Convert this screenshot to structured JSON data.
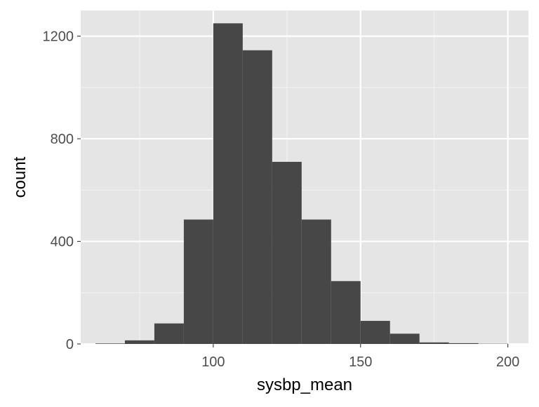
{
  "chart_data": {
    "type": "bar",
    "title": "",
    "xlabel": "sysbp_mean",
    "ylabel": "count",
    "xlim": [
      55,
      207
    ],
    "ylim": [
      0,
      1300
    ],
    "x_ticks": [
      100,
      150,
      200
    ],
    "y_ticks": [
      0,
      400,
      800,
      1200
    ],
    "grid": true,
    "background": "#e5e5e5",
    "bar_color": "#474747",
    "bins": [
      {
        "x0": 60,
        "x1": 70,
        "count": 2
      },
      {
        "x0": 70,
        "x1": 80,
        "count": 14
      },
      {
        "x0": 80,
        "x1": 90,
        "count": 80
      },
      {
        "x0": 90,
        "x1": 100,
        "count": 485
      },
      {
        "x0": 100,
        "x1": 110,
        "count": 1250
      },
      {
        "x0": 110,
        "x1": 120,
        "count": 1145
      },
      {
        "x0": 120,
        "x1": 130,
        "count": 710
      },
      {
        "x0": 130,
        "x1": 140,
        "count": 485
      },
      {
        "x0": 140,
        "x1": 150,
        "count": 245
      },
      {
        "x0": 150,
        "x1": 160,
        "count": 90
      },
      {
        "x0": 160,
        "x1": 170,
        "count": 40
      },
      {
        "x0": 170,
        "x1": 180,
        "count": 6
      },
      {
        "x0": 180,
        "x1": 190,
        "count": 3
      },
      {
        "x0": 190,
        "x1": 200,
        "count": 1
      }
    ]
  }
}
